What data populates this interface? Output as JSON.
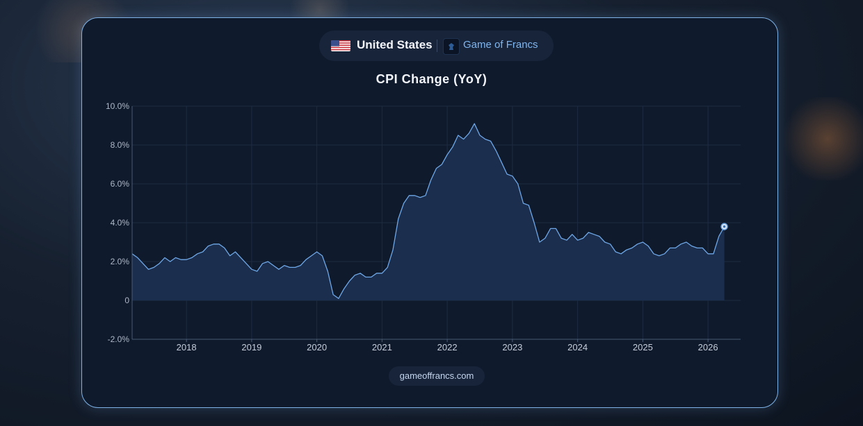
{
  "header": {
    "country": "United States",
    "brand": "Game of Francs",
    "flag_icon": "us-flag-icon",
    "brand_icon": "chess-piece-icon"
  },
  "footer": {
    "site": "gameoffrancs.com"
  },
  "colors": {
    "accent": "#7fb6f0",
    "line": "#6fa8e8",
    "area": "#1c2e4d",
    "card_bg": "#0f1a2c",
    "card_border": "#7fb3e8"
  },
  "chart_data": {
    "type": "area",
    "title": "CPI Change (YoY)",
    "xlabel": "",
    "ylabel": "",
    "ylim": [
      -2,
      10
    ],
    "xlim": [
      "2017-03",
      "2026-07"
    ],
    "y_ticks": [
      "-2.0%",
      "0",
      "2.0%",
      "4.0%",
      "6.0%",
      "8.0%",
      "10.0%"
    ],
    "x_ticks": [
      "2018",
      "2019",
      "2020",
      "2021",
      "2022",
      "2023",
      "2024",
      "2025",
      "2026"
    ],
    "grid": true,
    "legend": "none",
    "series": [
      {
        "x": [
          "2017-03",
          "2017-04",
          "2017-05",
          "2017-06",
          "2017-07",
          "2017-08",
          "2017-09",
          "2017-10",
          "2017-11",
          "2017-12",
          "2018-01",
          "2018-02",
          "2018-03",
          "2018-04",
          "2018-05",
          "2018-06",
          "2018-07",
          "2018-08",
          "2018-09",
          "2018-10",
          "2018-11",
          "2018-12",
          "2019-01",
          "2019-02",
          "2019-03",
          "2019-04",
          "2019-05",
          "2019-06",
          "2019-07",
          "2019-08",
          "2019-09",
          "2019-10",
          "2019-11",
          "2019-12",
          "2020-01",
          "2020-02",
          "2020-03",
          "2020-04",
          "2020-05",
          "2020-06",
          "2020-07",
          "2020-08",
          "2020-09",
          "2020-10",
          "2020-11",
          "2020-12",
          "2021-01",
          "2021-02",
          "2021-03",
          "2021-04",
          "2021-05",
          "2021-06",
          "2021-07",
          "2021-08",
          "2021-09",
          "2021-10",
          "2021-11",
          "2021-12",
          "2022-01",
          "2022-02",
          "2022-03",
          "2022-04",
          "2022-05",
          "2022-06",
          "2022-07",
          "2022-08",
          "2022-09",
          "2022-10",
          "2022-11",
          "2022-12",
          "2023-01",
          "2023-02",
          "2023-03",
          "2023-04",
          "2023-05",
          "2023-06",
          "2023-07",
          "2023-08",
          "2023-09",
          "2023-10",
          "2023-11",
          "2023-12",
          "2024-01",
          "2024-02",
          "2024-03",
          "2024-04",
          "2024-05",
          "2024-06",
          "2024-07",
          "2024-08",
          "2024-09",
          "2024-10",
          "2024-11",
          "2024-12",
          "2025-01",
          "2025-02",
          "2025-03",
          "2025-04",
          "2025-05",
          "2025-06",
          "2025-07",
          "2025-08",
          "2025-09",
          "2025-10",
          "2025-11",
          "2025-12",
          "2026-01",
          "2026-02",
          "2026-03",
          "2026-04"
        ],
        "y": [
          2.4,
          2.2,
          1.9,
          1.6,
          1.7,
          1.9,
          2.2,
          2.0,
          2.2,
          2.1,
          2.1,
          2.2,
          2.4,
          2.5,
          2.8,
          2.9,
          2.9,
          2.7,
          2.3,
          2.5,
          2.2,
          1.9,
          1.6,
          1.5,
          1.9,
          2.0,
          1.8,
          1.6,
          1.8,
          1.7,
          1.7,
          1.8,
          2.1,
          2.3,
          2.5,
          2.3,
          1.5,
          0.3,
          0.1,
          0.6,
          1.0,
          1.3,
          1.4,
          1.2,
          1.2,
          1.4,
          1.4,
          1.7,
          2.6,
          4.2,
          5.0,
          5.4,
          5.4,
          5.3,
          5.4,
          6.2,
          6.8,
          7.0,
          7.5,
          7.9,
          8.5,
          8.3,
          8.6,
          9.1,
          8.5,
          8.3,
          8.2,
          7.7,
          7.1,
          6.5,
          6.4,
          6.0,
          5.0,
          4.9,
          4.0,
          3.0,
          3.2,
          3.7,
          3.7,
          3.2,
          3.1,
          3.4,
          3.1,
          3.2,
          3.5,
          3.4,
          3.3,
          3.0,
          2.9,
          2.5,
          2.4,
          2.6,
          2.7,
          2.9,
          3.0,
          2.8,
          2.4,
          2.3,
          2.4,
          2.7,
          2.7,
          2.9,
          3.0,
          2.8,
          2.7,
          2.7,
          2.4,
          2.4,
          3.3,
          3.8
        ]
      }
    ]
  }
}
